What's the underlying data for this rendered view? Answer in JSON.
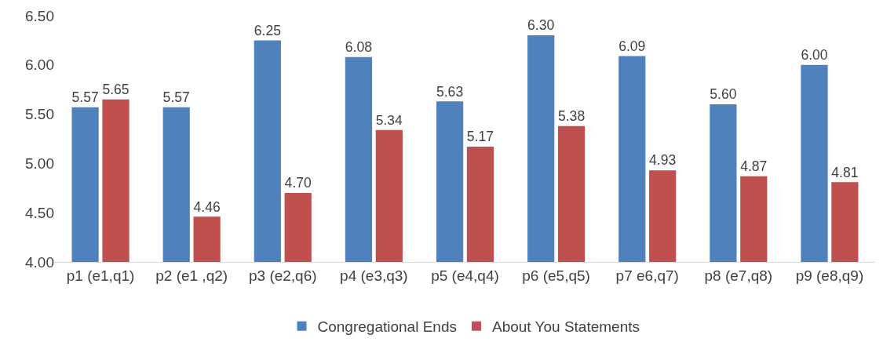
{
  "chart_data": {
    "type": "bar",
    "categories": [
      "p1 (e1,q1)",
      "p2 (e1 ,q2)",
      "p3 (e2,q6)",
      "p4 (e3,q3)",
      "p5 (e4,q4)",
      "p6 (e5,q5)",
      "p7 e6,q7)",
      "p8 (e7,q8)",
      "p9 (e8,q9)"
    ],
    "series": [
      {
        "name": "Congregational Ends",
        "color": "#4f81bd",
        "values": [
          5.57,
          5.57,
          6.25,
          6.08,
          5.63,
          6.3,
          6.09,
          5.6,
          6.0
        ],
        "value_labels": [
          "5.57",
          "5.57",
          "6.25",
          "6.08",
          "5.63",
          "6.30",
          "6.09",
          "5.60",
          "6.00"
        ]
      },
      {
        "name": "About You Statements",
        "color": "#c0504d",
        "values": [
          5.65,
          4.46,
          4.7,
          5.34,
          5.17,
          5.38,
          4.93,
          4.87,
          4.81
        ],
        "value_labels": [
          "5.65",
          "4.46",
          "4.70",
          "5.34",
          "5.17",
          "5.38",
          "4.93",
          "4.87",
          "4.81"
        ]
      }
    ],
    "ylim": [
      4,
      6.5
    ],
    "yticks": [
      {
        "value": 4,
        "label": "4.00"
      },
      {
        "value": 4.5,
        "label": "4.50"
      },
      {
        "value": 5,
        "label": "5.00"
      },
      {
        "value": 5.5,
        "label": "5.50"
      },
      {
        "value": 6,
        "label": "6.00"
      },
      {
        "value": 6.5,
        "label": "6.50"
      }
    ],
    "grid": false,
    "legend": "bottom"
  }
}
